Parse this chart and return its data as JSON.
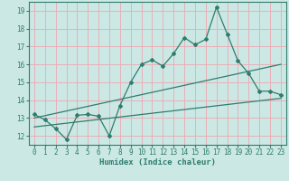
{
  "xlabel": "Humidex (Indice chaleur)",
  "xlim": [
    -0.5,
    23.5
  ],
  "ylim": [
    11.5,
    19.5
  ],
  "xticks": [
    0,
    1,
    2,
    3,
    4,
    5,
    6,
    7,
    8,
    9,
    10,
    11,
    12,
    13,
    14,
    15,
    16,
    17,
    18,
    19,
    20,
    21,
    22,
    23
  ],
  "yticks": [
    12,
    13,
    14,
    15,
    16,
    17,
    18,
    19
  ],
  "bg_color": "#cce8e4",
  "line_color": "#2e7d6e",
  "grid_color": "#e8b0b8",
  "main_x": [
    0,
    1,
    2,
    3,
    4,
    5,
    6,
    7,
    8,
    9,
    10,
    11,
    12,
    13,
    14,
    15,
    16,
    17,
    18,
    19,
    20,
    21,
    22,
    23
  ],
  "main_y": [
    13.2,
    12.9,
    12.4,
    11.8,
    13.15,
    13.2,
    13.1,
    12.0,
    13.7,
    15.0,
    16.0,
    16.25,
    15.9,
    16.6,
    17.5,
    17.1,
    17.4,
    19.2,
    17.7,
    16.2,
    15.5,
    14.5,
    14.5,
    14.3
  ],
  "line2_x": [
    0,
    23
  ],
  "line2_y": [
    13.0,
    16.0
  ],
  "line3_x": [
    0,
    23
  ],
  "line3_y": [
    12.5,
    14.1
  ]
}
